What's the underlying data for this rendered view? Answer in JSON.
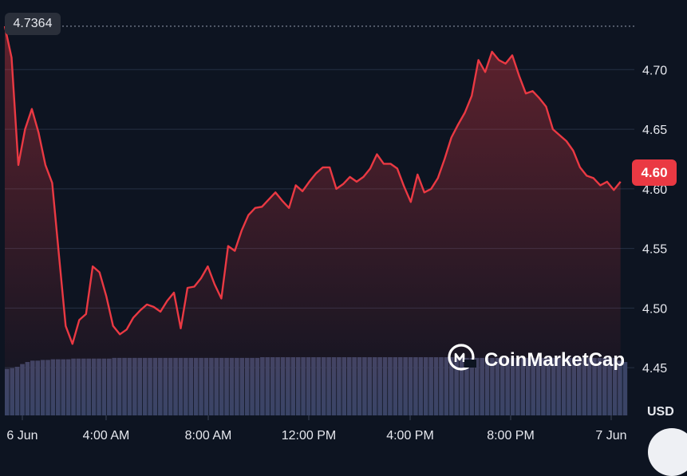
{
  "chart_data": {
    "type": "area",
    "x_ticks": [
      "6 Jun",
      "4:00 AM",
      "8:00 AM",
      "12:00 PM",
      "4:00 PM",
      "8:00 PM",
      "7 Jun"
    ],
    "y_ticks": [
      "4.70",
      "4.65",
      "4.60",
      "4.55",
      "4.50",
      "4.45"
    ],
    "ylim": [
      4.41,
      4.745
    ],
    "unit": "USD",
    "high_label": "4.7364",
    "current_label": "4.60",
    "series": [
      {
        "color": "#ea3943",
        "points": [
          [
            0.0,
            4.7364
          ],
          [
            0.25,
            4.71
          ],
          [
            0.5,
            4.62
          ],
          [
            0.75,
            4.65
          ],
          [
            1.0,
            4.667
          ],
          [
            1.25,
            4.647
          ],
          [
            1.5,
            4.62
          ],
          [
            1.75,
            4.605
          ],
          [
            2.0,
            4.545
          ],
          [
            2.25,
            4.485
          ],
          [
            2.5,
            4.47
          ],
          [
            2.75,
            4.49
          ],
          [
            3.0,
            4.495
          ],
          [
            3.25,
            4.535
          ],
          [
            3.5,
            4.53
          ],
          [
            3.75,
            4.51
          ],
          [
            4.0,
            4.485
          ],
          [
            4.25,
            4.478
          ],
          [
            4.5,
            4.482
          ],
          [
            4.75,
            4.492
          ],
          [
            5.0,
            4.498
          ],
          [
            5.25,
            4.503
          ],
          [
            5.5,
            4.501
          ],
          [
            5.75,
            4.497
          ],
          [
            6.0,
            4.506
          ],
          [
            6.25,
            4.513
          ],
          [
            6.5,
            4.483
          ],
          [
            6.75,
            4.517
          ],
          [
            7.0,
            4.518
          ],
          [
            7.25,
            4.525
          ],
          [
            7.5,
            4.535
          ],
          [
            7.75,
            4.52
          ],
          [
            8.0,
            4.508
          ],
          [
            8.25,
            4.552
          ],
          [
            8.5,
            4.548
          ],
          [
            8.75,
            4.565
          ],
          [
            9.0,
            4.578
          ],
          [
            9.25,
            4.584
          ],
          [
            9.5,
            4.585
          ],
          [
            9.75,
            4.591
          ],
          [
            10.0,
            4.597
          ],
          [
            10.25,
            4.59
          ],
          [
            10.5,
            4.584
          ],
          [
            10.75,
            4.603
          ],
          [
            11.0,
            4.598
          ],
          [
            11.25,
            4.606
          ],
          [
            11.5,
            4.613
          ],
          [
            11.75,
            4.618
          ],
          [
            12.0,
            4.618
          ],
          [
            12.25,
            4.6
          ],
          [
            12.5,
            4.604
          ],
          [
            12.75,
            4.61
          ],
          [
            13.0,
            4.606
          ],
          [
            13.25,
            4.61
          ],
          [
            13.5,
            4.617
          ],
          [
            13.75,
            4.629
          ],
          [
            14.0,
            4.621
          ],
          [
            14.25,
            4.621
          ],
          [
            14.5,
            4.617
          ],
          [
            14.75,
            4.602
          ],
          [
            15.0,
            4.589
          ],
          [
            15.25,
            4.612
          ],
          [
            15.5,
            4.597
          ],
          [
            15.75,
            4.6
          ],
          [
            16.0,
            4.609
          ],
          [
            16.25,
            4.625
          ],
          [
            16.5,
            4.643
          ],
          [
            16.75,
            4.654
          ],
          [
            17.0,
            4.664
          ],
          [
            17.25,
            4.678
          ],
          [
            17.5,
            4.708
          ],
          [
            17.75,
            4.698
          ],
          [
            18.0,
            4.715
          ],
          [
            18.25,
            4.708
          ],
          [
            18.5,
            4.705
          ],
          [
            18.75,
            4.712
          ],
          [
            19.0,
            4.695
          ],
          [
            19.25,
            4.68
          ],
          [
            19.5,
            4.682
          ],
          [
            19.75,
            4.676
          ],
          [
            20.0,
            4.669
          ],
          [
            20.25,
            4.65
          ],
          [
            20.5,
            4.645
          ],
          [
            20.75,
            4.64
          ],
          [
            21.0,
            4.632
          ],
          [
            21.25,
            4.618
          ],
          [
            21.5,
            4.611
          ],
          [
            21.75,
            4.609
          ],
          [
            22.0,
            4.603
          ],
          [
            22.25,
            4.606
          ],
          [
            22.5,
            4.599
          ],
          [
            22.75,
            4.606
          ]
        ]
      }
    ],
    "volume": {
      "color": "#3a4466",
      "values": [
        0.68,
        0.69,
        0.71,
        0.75,
        0.78,
        0.8,
        0.8,
        0.81,
        0.81,
        0.82,
        0.82,
        0.82,
        0.82,
        0.83,
        0.83,
        0.83,
        0.83,
        0.83,
        0.83,
        0.83,
        0.83,
        0.84,
        0.84,
        0.84,
        0.84,
        0.84,
        0.84,
        0.84,
        0.84,
        0.84,
        0.84,
        0.84,
        0.84,
        0.84,
        0.84,
        0.84,
        0.84,
        0.84,
        0.84,
        0.84,
        0.84,
        0.84,
        0.84,
        0.84,
        0.84,
        0.84,
        0.84,
        0.84,
        0.84,
        0.84,
        0.85,
        0.85,
        0.85,
        0.85,
        0.85,
        0.85,
        0.85,
        0.85,
        0.85,
        0.85,
        0.85,
        0.85,
        0.85,
        0.85,
        0.85,
        0.85,
        0.85,
        0.85,
        0.85,
        0.85,
        0.85,
        0.85,
        0.85,
        0.85,
        0.85,
        0.85,
        0.85,
        0.85,
        0.85,
        0.85,
        0.85,
        0.85,
        0.85,
        0.85,
        0.85,
        0.85,
        0.85,
        0.85,
        0.85,
        0.85,
        0.84,
        0.84,
        0.84,
        0.84,
        0.84,
        0.84,
        0.84,
        0.84,
        0.84,
        0.84,
        0.84,
        0.84,
        0.84,
        0.84,
        0.84,
        0.84,
        0.84,
        0.84,
        0.84,
        0.84,
        0.84,
        0.84,
        0.84,
        0.84,
        0.84,
        0.84,
        0.84,
        0.84,
        0.84,
        0.84,
        0.8,
        0.78
      ]
    },
    "grid": true,
    "legend": "none"
  },
  "watermark": {
    "text": "CoinMarketCap",
    "icon": "coinmarketcap-logo-icon"
  },
  "colors": {
    "background": "#0d1421",
    "line": "#ea3943",
    "grid": "#253044",
    "badge": "#2a2f3a"
  }
}
